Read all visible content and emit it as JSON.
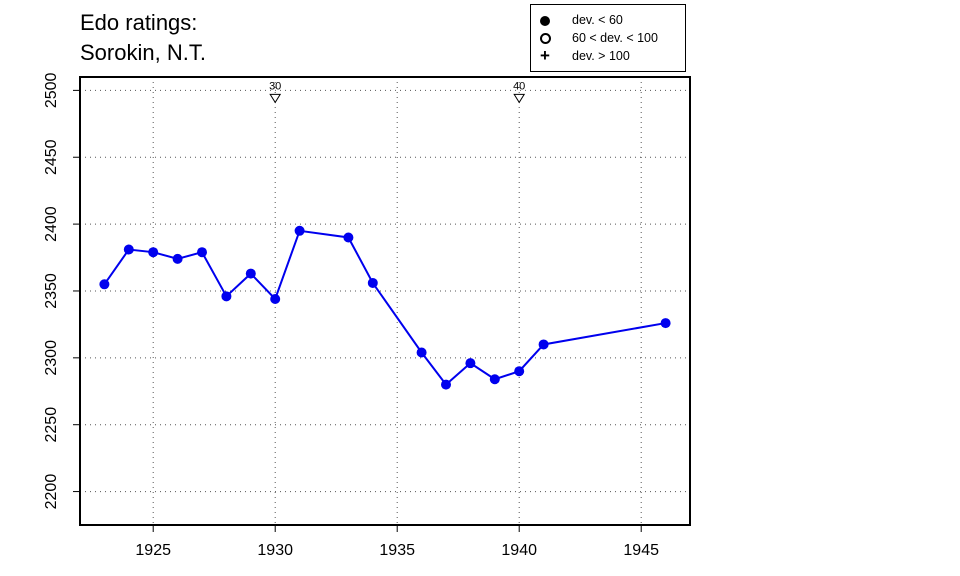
{
  "title_lines": [
    "Edo ratings:",
    "Sorokin, N.T."
  ],
  "legend": [
    {
      "symbol": "filled-circle",
      "label": "dev. < 60"
    },
    {
      "symbol": "open-circle",
      "label": "60 < dev. < 100"
    },
    {
      "symbol": "plus",
      "label": "dev. > 100"
    }
  ],
  "chart_data": {
    "type": "line",
    "title": "Edo ratings: Sorokin, N.T.",
    "xlabel": "",
    "ylabel": "",
    "xlim": [
      1922,
      1947
    ],
    "ylim": [
      2175,
      2510
    ],
    "x_ticks": [
      1925,
      1930,
      1935,
      1940,
      1945
    ],
    "y_ticks": [
      2200,
      2250,
      2300,
      2350,
      2400,
      2450,
      2500
    ],
    "grid": true,
    "color": "#0000ee",
    "points": [
      {
        "x": 1923,
        "y": 2355
      },
      {
        "x": 1924,
        "y": 2381
      },
      {
        "x": 1925,
        "y": 2379
      },
      {
        "x": 1926,
        "y": 2374
      },
      {
        "x": 1927,
        "y": 2379
      },
      {
        "x": 1928,
        "y": 2346
      },
      {
        "x": 1929,
        "y": 2363
      },
      {
        "x": 1930,
        "y": 2344
      },
      {
        "x": 1931,
        "y": 2395
      },
      {
        "x": 1933,
        "y": 2390
      },
      {
        "x": 1934,
        "y": 2356
      },
      {
        "x": 1936,
        "y": 2304
      },
      {
        "x": 1937,
        "y": 2280
      },
      {
        "x": 1938,
        "y": 2296
      },
      {
        "x": 1939,
        "y": 2284
      },
      {
        "x": 1940,
        "y": 2290
      },
      {
        "x": 1941,
        "y": 2310
      },
      {
        "x": 1946,
        "y": 2326
      }
    ],
    "annotations": [
      {
        "x": 1930,
        "y": 2500,
        "label": "30",
        "marker": "down-triangle"
      },
      {
        "x": 1940,
        "y": 2500,
        "label": "40",
        "marker": "down-triangle"
      }
    ]
  }
}
